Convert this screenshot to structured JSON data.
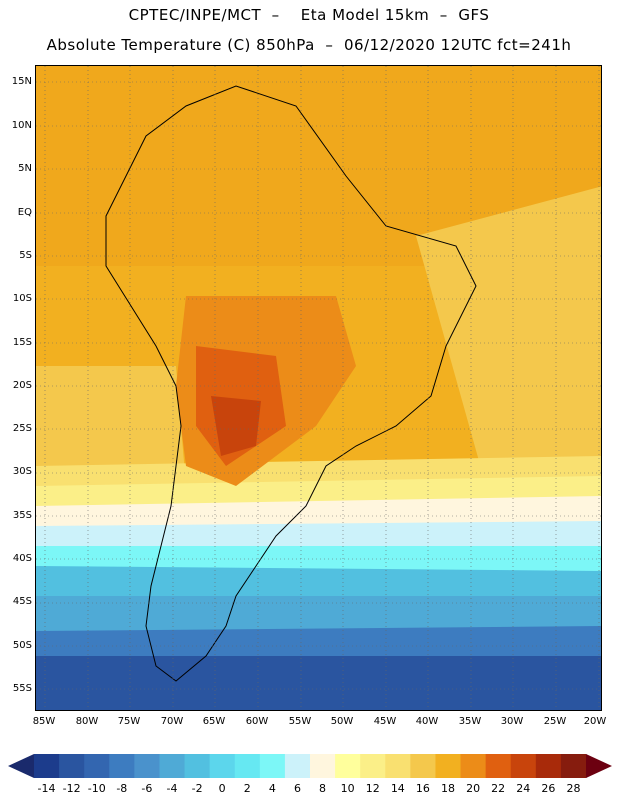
{
  "header": {
    "line1": "CPTEC/INPE/MCT  –    Eta Model 15km  –  GFS",
    "line2": "Absolute Temperature (C) 850hPa  –  06/12/2020 12UTC fct=241h"
  },
  "map": {
    "lat_labels": [
      "15N",
      "10N",
      "5N",
      "EQ",
      "5S",
      "10S",
      "15S",
      "20S",
      "25S",
      "30S",
      "35S",
      "40S",
      "45S",
      "50S",
      "55S"
    ],
    "lon_labels": [
      "85W",
      "80W",
      "75W",
      "70W",
      "65W",
      "60W",
      "55W",
      "50W",
      "45W",
      "40W",
      "35W",
      "30W",
      "25W",
      "20W"
    ]
  },
  "colorbar": {
    "labels": [
      "-14",
      "-12",
      "-10",
      "-8",
      "-6",
      "-4",
      "-2",
      "0",
      "2",
      "4",
      "6",
      "8",
      "10",
      "12",
      "14",
      "16",
      "18",
      "20",
      "22",
      "24",
      "26",
      "28"
    ],
    "colors": [
      "#1c3c8c",
      "#2a55a0",
      "#3366b0",
      "#3d7cc0",
      "#4a92cc",
      "#4faad6",
      "#52c0e0",
      "#5cd6ec",
      "#66e8f2",
      "#7cf7f7",
      "#ccf2fa",
      "#fff6de",
      "#ffff9c",
      "#fbef88",
      "#f9e070",
      "#f4c84c",
      "#f2b020",
      "#ec8c18",
      "#e06010",
      "#c8440c",
      "#a82a0a",
      "#861c0e"
    ],
    "left_arrow_color": "#1a2a6c",
    "right_arrow_color": "#6c0010"
  }
}
